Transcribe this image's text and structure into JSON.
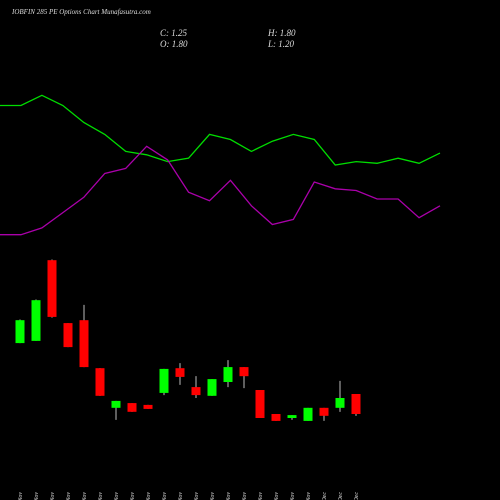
{
  "chart_data": {
    "type": "candlestick",
    "title": "IOBFIN 285 PE Options Chart Munafasutra.com",
    "info": [
      "C: 1.25",
      "H: 1.80",
      "O: 1.80",
      "L: 1.20"
    ],
    "categories": [
      "04 Nov",
      "05 Nov",
      "06 Nov",
      "07 Nov",
      "08 Nov",
      "11 Nov",
      "12 Nov",
      "13 Nov",
      "14 Nov",
      "18 Nov",
      "19 Nov",
      "20 Nov",
      "21 Nov",
      "22 Nov",
      "25 Nov",
      "26 Nov",
      "27 Nov",
      "28 Nov",
      "29 Nov",
      "02 Dec",
      "03 Dec",
      "04 Dec"
    ],
    "open": [
      3.2,
      3.26,
      5.48,
      3.75,
      3.83,
      2.51,
      1.42,
      1.55,
      1.5,
      1.83,
      2.51,
      1.99,
      1.75,
      2.13,
      2.54,
      1.91,
      1.25,
      1.14,
      1.06,
      1.42,
      1.42,
      1.8
    ],
    "high": [
      3.85,
      4.4,
      5.5,
      3.75,
      4.25,
      2.51,
      1.61,
      1.55,
      1.5,
      2.49,
      2.65,
      2.29,
      2.21,
      2.73,
      2.54,
      1.91,
      1.25,
      1.22,
      1.42,
      1.42,
      2.16,
      1.8
    ],
    "low": [
      3.2,
      3.26,
      3.9,
      3.09,
      2.54,
      1.75,
      1.09,
      1.31,
      1.39,
      1.77,
      2.05,
      1.69,
      1.75,
      1.99,
      1.96,
      1.14,
      1.06,
      1.09,
      1.06,
      1.06,
      1.31,
      1.2
    ],
    "close": [
      3.83,
      4.38,
      3.92,
      3.09,
      2.54,
      1.75,
      1.61,
      1.31,
      1.39,
      2.49,
      2.27,
      1.77,
      2.21,
      2.54,
      2.29,
      1.14,
      1.06,
      1.22,
      1.42,
      1.2,
      1.69,
      1.25
    ],
    "up_color": "#00ff00",
    "down_color": "#ff0000",
    "ylim": [
      0.81,
      5.76
    ],
    "lines": [
      {
        "color": "#00dd00",
        "values": [
          85,
          85,
          91,
          85,
          75,
          68,
          58,
          56,
          52,
          54,
          68,
          65,
          58,
          64,
          68,
          65,
          50,
          52,
          51,
          54,
          51,
          57
        ]
      },
      {
        "color": "#aa00aa",
        "values": [
          9,
          9,
          13,
          22,
          31,
          45,
          48,
          61,
          53,
          34,
          29,
          41,
          26,
          15,
          18,
          40,
          36,
          35,
          30,
          30,
          19,
          26
        ]
      }
    ],
    "line_ylim": [
      0,
      100
    ]
  }
}
